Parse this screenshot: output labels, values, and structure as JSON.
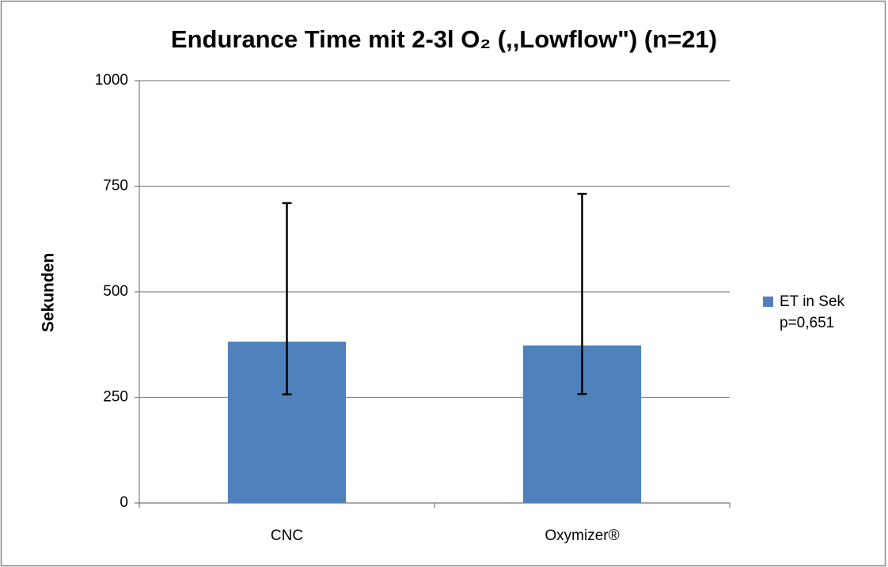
{
  "chart_data": {
    "type": "bar",
    "title": "Endurance Time mit 2-3l O₂ (,,Lowflow\") (n=21)",
    "y_label": "Sekunden",
    "categories": [
      "CNC",
      "Oxymizer®"
    ],
    "series": [
      {
        "name": "ET in Sek",
        "color": "#4f81bd",
        "values": [
          382,
          373
        ],
        "errors_minus": [
          125,
          115
        ],
        "errors_plus": [
          328,
          359
        ]
      }
    ],
    "legend_note": "p=0,651",
    "legend": "right",
    "ylim": [
      0,
      1000
    ],
    "yticks": [
      0,
      250,
      500,
      750,
      1000
    ],
    "grid": true
  }
}
